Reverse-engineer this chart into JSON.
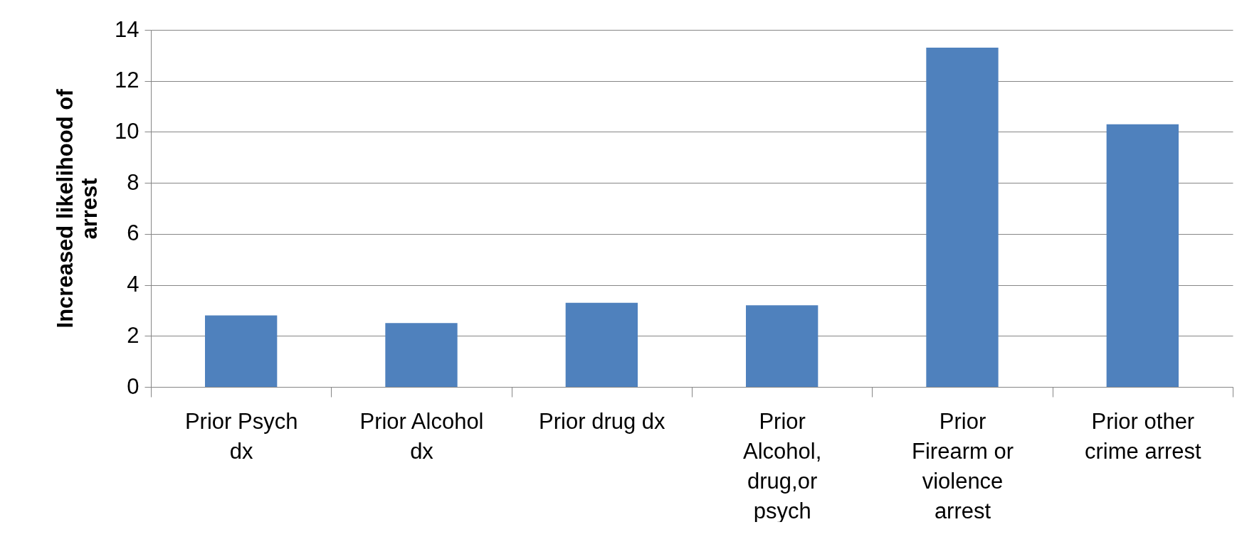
{
  "chart_data": {
    "type": "bar",
    "ylabel": "Increased likelihood of\narrest",
    "categories": [
      "Prior Psych\ndx",
      "Prior Alcohol\ndx",
      "Prior drug dx",
      "Prior\nAlcohol,\ndrug,or\npsych",
      "Prior\nFirearm or\nviolence\narrest",
      "Prior other\ncrime arrest"
    ],
    "values": [
      2.8,
      2.5,
      3.3,
      3.2,
      13.3,
      10.3
    ],
    "color": "#4f81bd",
    "ylim": [
      0,
      14
    ],
    "yticks": [
      0,
      2,
      4,
      6,
      8,
      10,
      12,
      14
    ],
    "grid": "y"
  }
}
